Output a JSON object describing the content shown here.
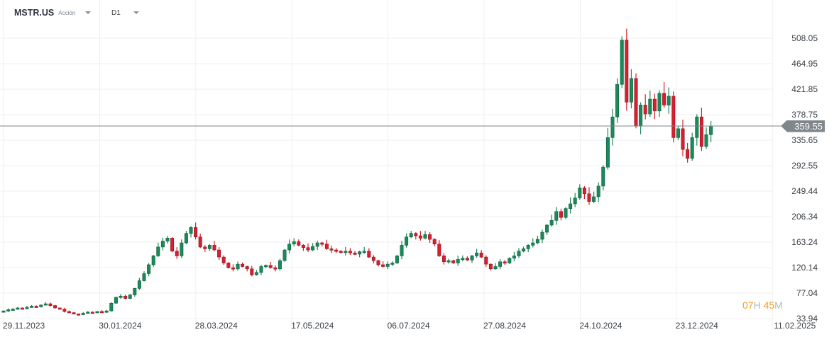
{
  "header": {
    "symbol": "MSTR.US",
    "instrument_type": "Acción",
    "timeframe": "D1"
  },
  "colors": {
    "up": "#1a8a5a",
    "down": "#d6202f",
    "grid": "#efefef",
    "price_line": "#7f878c",
    "countdown": "#f59a23"
  },
  "price_axis": [
    "508.05",
    "464.95",
    "421.85",
    "378.75",
    "335.65",
    "292.55",
    "249.44",
    "206.34",
    "163.24",
    "120.14",
    "77.04",
    "33.94"
  ],
  "date_axis": [
    "29.11.2023",
    "30.01.2024",
    "28.03.2024",
    "17.05.2024",
    "06.07.2024",
    "27.08.2024",
    "24.10.2024",
    "23.12.2024",
    "11.02.2025"
  ],
  "current_price": "359.55",
  "countdown": {
    "hours": "07",
    "h_label": "H",
    "minutes": "45",
    "m_label": "M"
  },
  "chart_data": {
    "type": "candlestick",
    "symbol": "MSTR.US",
    "ylim": [
      33.94,
      508.05
    ],
    "first_close": 47,
    "closes": [
      47,
      49,
      50,
      52,
      51,
      53,
      55,
      54,
      57,
      59,
      56,
      52,
      50,
      46,
      44,
      42,
      41,
      43,
      45,
      44,
      46,
      45,
      47,
      60,
      70,
      72,
      68,
      74,
      85,
      98,
      110,
      125,
      140,
      155,
      165,
      170,
      148,
      140,
      162,
      178,
      188,
      172,
      155,
      152,
      158,
      150,
      138,
      128,
      120,
      118,
      126,
      122,
      118,
      108,
      112,
      122,
      124,
      120,
      118,
      132,
      150,
      160,
      164,
      158,
      154,
      150,
      156,
      162,
      160,
      152,
      150,
      148,
      146,
      148,
      145,
      143,
      147,
      148,
      138,
      132,
      125,
      122,
      126,
      128,
      140,
      158,
      172,
      178,
      174,
      170,
      176,
      168,
      160,
      140,
      130,
      132,
      128,
      134,
      136,
      133,
      140,
      145,
      138,
      126,
      118,
      122,
      130,
      128,
      136,
      140,
      148,
      152,
      158,
      162,
      168,
      180,
      192,
      200,
      215,
      205,
      220,
      228,
      238,
      255,
      245,
      232,
      240,
      258,
      290,
      340,
      375,
      430,
      505,
      400,
      440,
      360,
      395,
      380,
      405,
      385,
      415,
      395,
      410,
      340,
      355,
      320,
      305,
      340,
      375,
      325,
      345,
      359.55
    ]
  }
}
